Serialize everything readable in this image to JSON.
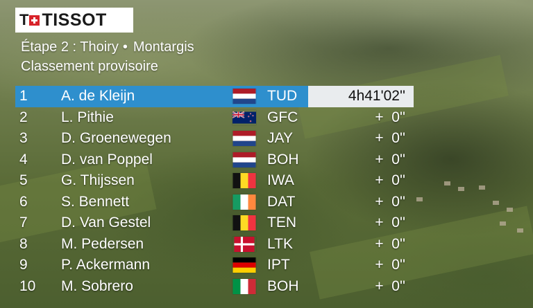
{
  "logo": {
    "brand": "TISSOT"
  },
  "header": {
    "stage": "Étape 2 : Thoiry",
    "separator": "•",
    "destination": "Montargis",
    "subtitle": "Classement provisoire"
  },
  "standings": [
    {
      "pos": "1",
      "name": "A. de Kleijn",
      "flag": "netherlands-flag",
      "team": "TUD",
      "time": "4h41'02''"
    },
    {
      "pos": "2",
      "name": "L. Pithie",
      "flag": "new-zealand-flag",
      "team": "GFC",
      "time": "+  0''"
    },
    {
      "pos": "3",
      "name": "D. Groenewegen",
      "flag": "netherlands-flag",
      "team": "JAY",
      "time": "+  0''"
    },
    {
      "pos": "4",
      "name": "D. van Poppel",
      "flag": "netherlands-flag",
      "team": "BOH",
      "time": "+  0''"
    },
    {
      "pos": "5",
      "name": "G. Thijssen",
      "flag": "belgium-flag",
      "team": "IWA",
      "time": "+  0''"
    },
    {
      "pos": "6",
      "name": "S. Bennett",
      "flag": "ireland-flag",
      "team": "DAT",
      "time": "+  0''"
    },
    {
      "pos": "7",
      "name": "D. Van Gestel",
      "flag": "belgium-flag",
      "team": "TEN",
      "time": "+  0''"
    },
    {
      "pos": "8",
      "name": "M. Pedersen",
      "flag": "denmark-flag",
      "team": "LTK",
      "time": "+  0''"
    },
    {
      "pos": "9",
      "name": "P. Ackermann",
      "flag": "germany-flag",
      "team": "IPT",
      "time": "+  0''"
    },
    {
      "pos": "10",
      "name": "M. Sobrero",
      "flag": "italy-flag",
      "team": "BOH",
      "time": "+  0''"
    }
  ],
  "colors": {
    "leader_row": "#2e8fcd",
    "leader_time_bg": "#e9ecee",
    "logo_red": "#d8232a"
  }
}
